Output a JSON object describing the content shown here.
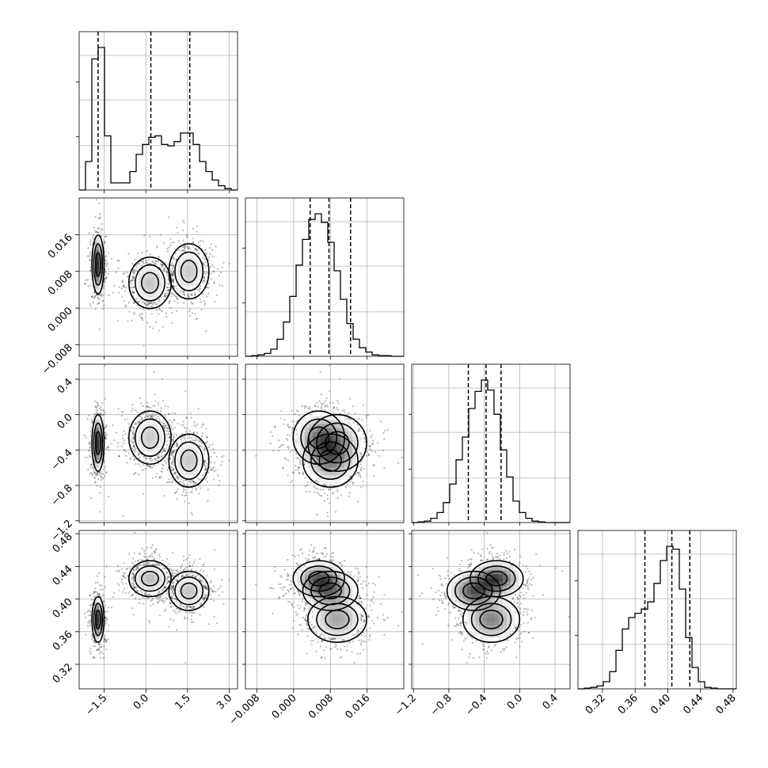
{
  "chart_data": {
    "type": "corner",
    "grid": true,
    "parameters": [
      {
        "range": [
          -2.4,
          3.3
        ],
        "ticks": [
          -1.5,
          0.0,
          1.5,
          3.0
        ],
        "tick_labels": [
          "−1.5",
          "0.0",
          "1.5",
          "3.0"
        ],
        "quantiles": [
          -1.72,
          0.18,
          1.58
        ]
      },
      {
        "range": [
          -0.0105,
          0.024
        ],
        "ticks": [
          -0.008,
          0.0,
          0.008,
          0.016
        ],
        "tick_labels": [
          "−0.008",
          "0.000",
          "0.008",
          "0.016"
        ],
        "quantiles": [
          0.0036,
          0.0077,
          0.0124
        ]
      },
      {
        "range": [
          -1.22,
          0.57
        ],
        "ticks": [
          -1.2,
          -0.8,
          -0.4,
          0.0,
          0.4
        ],
        "tick_labels": [
          "−1.2",
          "−0.8",
          "−0.4",
          "0.0",
          "0.4"
        ],
        "quantiles": [
          -0.58,
          -0.38,
          -0.21
        ]
      },
      {
        "range": [
          0.29,
          0.484
        ],
        "ticks": [
          0.32,
          0.36,
          0.4,
          0.44,
          0.48
        ],
        "tick_labels": [
          "0.32",
          "0.36",
          "0.40",
          "0.44",
          "0.48"
        ],
        "quantiles": [
          0.372,
          0.405,
          0.427
        ]
      }
    ],
    "histograms": [
      {
        "edges_range": [
          -2.4,
          3.3
        ],
        "counts": [
          0,
          0.2,
          0.92,
          1.0,
          0.38,
          0.05,
          0.05,
          0.05,
          0.13,
          0.25,
          0.32,
          0.37,
          0.38,
          0.32,
          0.31,
          0.34,
          0.4,
          0.4,
          0.32,
          0.2,
          0.13,
          0.07,
          0.03,
          0.01,
          0
        ]
      },
      {
        "edges_range": [
          -0.0105,
          0.024
        ],
        "counts": [
          0,
          0.005,
          0.01,
          0.02,
          0.05,
          0.12,
          0.24,
          0.42,
          0.64,
          0.82,
          0.96,
          1.0,
          0.94,
          0.8,
          0.6,
          0.4,
          0.23,
          0.12,
          0.06,
          0.03,
          0.01,
          0.005,
          0.005,
          0,
          0
        ]
      },
      {
        "edges_range": [
          -1.22,
          0.57
        ],
        "counts": [
          0,
          0.005,
          0.01,
          0.03,
          0.07,
          0.14,
          0.27,
          0.44,
          0.6,
          0.8,
          0.92,
          1.0,
          0.93,
          0.76,
          0.51,
          0.32,
          0.15,
          0.07,
          0.03,
          0.01,
          0.005,
          0,
          0,
          0,
          0
        ]
      },
      {
        "edges_range": [
          0.29,
          0.484
        ],
        "counts": [
          0,
          0.005,
          0.01,
          0.02,
          0.05,
          0.12,
          0.27,
          0.42,
          0.5,
          0.53,
          0.56,
          0.61,
          0.74,
          0.9,
          1.0,
          0.98,
          0.7,
          0.36,
          0.15,
          0.05,
          0.01,
          0.005,
          0,
          0,
          0
        ]
      }
    ],
    "components": [
      {
        "weight": 0.33,
        "mean": [
          -1.72,
          0.0095,
          -0.32,
          0.375
        ],
        "sd": [
          0.11,
          0.0032,
          0.16,
          0.014
        ]
      },
      {
        "weight": 0.34,
        "mean": [
          0.15,
          0.0055,
          -0.26,
          0.425
        ],
        "sd": [
          0.38,
          0.0028,
          0.15,
          0.011
        ]
      },
      {
        "weight": 0.33,
        "mean": [
          1.55,
          0.008,
          -0.52,
          0.41
        ],
        "sd": [
          0.36,
          0.003,
          0.15,
          0.012
        ]
      }
    ]
  }
}
